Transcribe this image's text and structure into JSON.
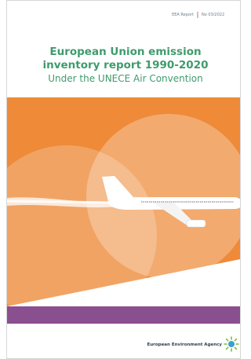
{
  "header": {
    "series": "EEA Report",
    "number": "No 03/2022"
  },
  "title_lines": [
    "European Union emission",
    "inventory report 1990-2020"
  ],
  "subtitle": "Under the UNECE Air Convention",
  "publisher": "European Environment Agency"
}
